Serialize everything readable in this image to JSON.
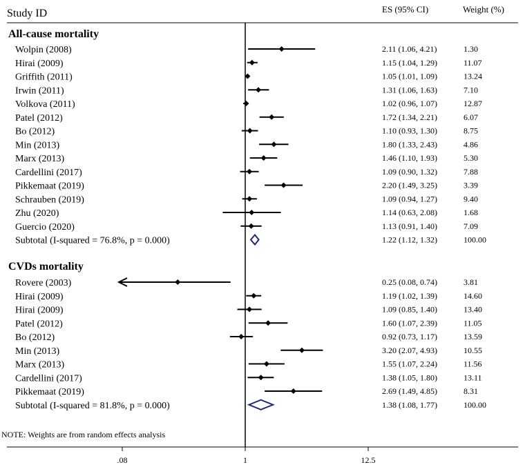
{
  "chart_data": {
    "type": "forest",
    "header": {
      "study_label": "Study ID",
      "es_label": "ES (95% CI)",
      "weight_label": "Weight (%)"
    },
    "note": "NOTE: Weights are from random effects analysis",
    "x_axis": {
      "scale": "log",
      "null_value": 1,
      "ticks": [
        0.08,
        1,
        12.5
      ],
      "tick_labels": [
        ".08",
        "1",
        "12.5"
      ]
    },
    "groups": [
      {
        "title": "All-cause mortality",
        "studies": [
          {
            "label": "Wolpin (2008)",
            "es": 2.11,
            "lo": 1.06,
            "hi": 4.21,
            "es_text": "2.11 (1.06, 4.21)",
            "weight": "1.30"
          },
          {
            "label": "Hirai (2009)",
            "es": 1.15,
            "lo": 1.04,
            "hi": 1.29,
            "es_text": "1.15 (1.04, 1.29)",
            "weight": "11.07"
          },
          {
            "label": "Griffith (2011)",
            "es": 1.05,
            "lo": 1.01,
            "hi": 1.09,
            "es_text": "1.05 (1.01, 1.09)",
            "weight": "13.24"
          },
          {
            "label": "Irwin (2011)",
            "es": 1.31,
            "lo": 1.06,
            "hi": 1.63,
            "es_text": "1.31 (1.06, 1.63)",
            "weight": "7.10"
          },
          {
            "label": "Volkova (2011)",
            "es": 1.02,
            "lo": 0.96,
            "hi": 1.07,
            "es_text": "1.02 (0.96, 1.07)",
            "weight": "12.87"
          },
          {
            "label": "Patel (2012)",
            "es": 1.72,
            "lo": 1.34,
            "hi": 2.21,
            "es_text": "1.72 (1.34, 2.21)",
            "weight": "6.07"
          },
          {
            "label": "Bo (2012)",
            "es": 1.1,
            "lo": 0.93,
            "hi": 1.3,
            "es_text": "1.10 (0.93, 1.30)",
            "weight": "8.75"
          },
          {
            "label": "Min (2013)",
            "es": 1.8,
            "lo": 1.33,
            "hi": 2.43,
            "es_text": "1.80 (1.33, 2.43)",
            "weight": "4.86"
          },
          {
            "label": "Marx (2013)",
            "es": 1.46,
            "lo": 1.1,
            "hi": 1.93,
            "es_text": "1.46 (1.10, 1.93)",
            "weight": "5.30"
          },
          {
            "label": "Cardellini (2017)",
            "es": 1.09,
            "lo": 0.9,
            "hi": 1.32,
            "es_text": "1.09 (0.90, 1.32)",
            "weight": "7.88"
          },
          {
            "label": "Pikkemaat (2019)",
            "es": 2.2,
            "lo": 1.49,
            "hi": 3.25,
            "es_text": "2.20 (1.49, 3.25)",
            "weight": "3.39"
          },
          {
            "label": "Schrauben (2019)",
            "es": 1.09,
            "lo": 0.94,
            "hi": 1.27,
            "es_text": "1.09 (0.94, 1.27)",
            "weight": "9.40"
          },
          {
            "label": "Zhu (2020)",
            "es": 1.14,
            "lo": 0.63,
            "hi": 2.08,
            "es_text": "1.14 (0.63, 2.08)",
            "weight": "1.68"
          },
          {
            "label": "Guercio (2020)",
            "es": 1.13,
            "lo": 0.91,
            "hi": 1.4,
            "es_text": "1.13 (0.91, 1.40)",
            "weight": "7.09"
          }
        ],
        "subtotal": {
          "label": "Subtotal  (I-squared = 76.8%, p = 0.000)",
          "es": 1.22,
          "lo": 1.12,
          "hi": 1.32,
          "es_text": "1.22 (1.12, 1.32)",
          "weight": "100.00"
        }
      },
      {
        "title": "CVDs mortality",
        "studies": [
          {
            "label": "Rovere (2003)",
            "es": 0.25,
            "lo": 0.08,
            "hi": 0.74,
            "es_text": "0.25 (0.08, 0.74)",
            "weight": "3.81",
            "arrow_left": true
          },
          {
            "label": "Hirai (2009)",
            "es": 1.19,
            "lo": 1.02,
            "hi": 1.39,
            "es_text": "1.19 (1.02, 1.39)",
            "weight": "14.60"
          },
          {
            "label": "Hirai (2009)",
            "es": 1.09,
            "lo": 0.85,
            "hi": 1.4,
            "es_text": "1.09 (0.85, 1.40)",
            "weight": "13.40"
          },
          {
            "label": "Patel (2012)",
            "es": 1.6,
            "lo": 1.07,
            "hi": 2.39,
            "es_text": "1.60 (1.07, 2.39)",
            "weight": "11.05"
          },
          {
            "label": "Bo (2012)",
            "es": 0.92,
            "lo": 0.73,
            "hi": 1.17,
            "es_text": "0.92 (0.73, 1.17)",
            "weight": "13.59"
          },
          {
            "label": "Min (2013)",
            "es": 3.2,
            "lo": 2.07,
            "hi": 4.93,
            "es_text": "3.20 (2.07, 4.93)",
            "weight": "10.55"
          },
          {
            "label": "Marx (2013)",
            "es": 1.55,
            "lo": 1.07,
            "hi": 2.24,
            "es_text": "1.55 (1.07, 2.24)",
            "weight": "11.56"
          },
          {
            "label": "Cardellini (2017)",
            "es": 1.38,
            "lo": 1.05,
            "hi": 1.8,
            "es_text": "1.38 (1.05, 1.80)",
            "weight": "13.11"
          },
          {
            "label": "Pikkemaat (2019)",
            "es": 2.69,
            "lo": 1.49,
            "hi": 4.85,
            "es_text": "2.69 (1.49, 4.85)",
            "weight": "8.31"
          }
        ],
        "subtotal": {
          "label": "Subtotal  (I-squared = 81.8%, p = 0.000)",
          "es": 1.38,
          "lo": 1.08,
          "hi": 1.77,
          "es_text": "1.38 (1.08, 1.77)",
          "weight": "100.00"
        }
      }
    ]
  }
}
